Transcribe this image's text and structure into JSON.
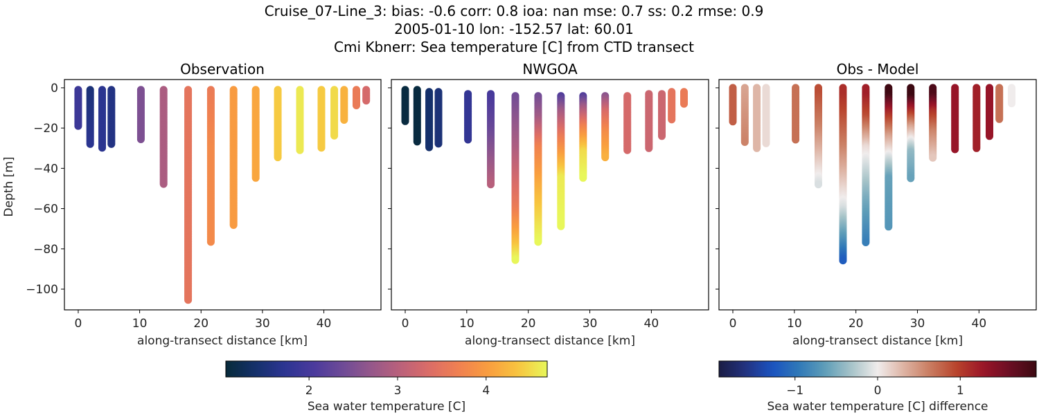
{
  "title": {
    "line1": "Cruise_07-Line_3: bias: -0.6  corr: 0.8  ioa: nan  mse: 0.7  ss: 0.2  rmse: 0.9",
    "line2": "2005-01-10 lon: -152.57 lat: 60.01",
    "line3": "Cmi Kbnerr: Sea temperature [C] from CTD transect"
  },
  "chart_data": [
    {
      "type": "scatter",
      "title": "Observation",
      "xlabel": "along-transect distance [km]",
      "ylabel": "Depth [m]",
      "xlim": [
        -2.25,
        49.3
      ],
      "ylim": [
        -110.3,
        4.1
      ],
      "xticks": [
        0,
        10,
        20,
        30,
        40
      ],
      "yticks": [
        0,
        -20,
        -40,
        -60,
        -80,
        -100
      ],
      "ytick_labels": [
        "0",
        "−20",
        "−40",
        "−60",
        "−80",
        "−100"
      ],
      "colormap": "thermal",
      "stations": [
        {
          "x": 0,
          "top": -1,
          "bottom": -19,
          "temp": [
            [
              -1,
              1.9
            ],
            [
              -19,
              1.9
            ]
          ]
        },
        {
          "x": 1.95,
          "top": -1,
          "bottom": -28,
          "temp": [
            [
              -1,
              1.5
            ],
            [
              -28,
              1.7
            ]
          ]
        },
        {
          "x": 3.9,
          "top": -1,
          "bottom": -30,
          "temp": [
            [
              -1,
              1.7
            ],
            [
              -30,
              1.7
            ]
          ]
        },
        {
          "x": 5.4,
          "top": -1,
          "bottom": -28,
          "temp": [
            [
              -1,
              1.6
            ],
            [
              -28,
              1.6
            ]
          ]
        },
        {
          "x": 10.2,
          "top": -1,
          "bottom": -26,
          "temp": [
            [
              -1,
              2.5
            ],
            [
              -26,
              2.5
            ]
          ]
        },
        {
          "x": 13.9,
          "top": -1,
          "bottom": -48,
          "temp": [
            [
              -1,
              2.9
            ],
            [
              -48,
              2.9
            ]
          ]
        },
        {
          "x": 17.9,
          "top": -1,
          "bottom": -105.5,
          "temp": [
            [
              -1,
              3.5
            ],
            [
              -105.5,
              3.5
            ]
          ]
        },
        {
          "x": 21.6,
          "top": -1,
          "bottom": -76.6,
          "temp": [
            [
              -1,
              3.6
            ],
            [
              -30,
              3.8
            ],
            [
              -76.6,
              3.8
            ]
          ]
        },
        {
          "x": 25.3,
          "top": -1,
          "bottom": -68.7,
          "temp": [
            [
              -1,
              4.0
            ],
            [
              -68.7,
              4.0
            ]
          ]
        },
        {
          "x": 28.9,
          "top": -1,
          "bottom": -45,
          "temp": [
            [
              -1,
              4.1
            ],
            [
              -45,
              4.1
            ]
          ]
        },
        {
          "x": 32.5,
          "top": -1,
          "bottom": -35,
          "temp": [
            [
              -1,
              4.4
            ],
            [
              -35,
              4.4
            ]
          ]
        },
        {
          "x": 36.1,
          "top": -1,
          "bottom": -31,
          "temp": [
            [
              -1,
              4.6
            ],
            [
              -31,
              4.6
            ]
          ]
        },
        {
          "x": 39.6,
          "top": -1,
          "bottom": -30,
          "temp": [
            [
              -1,
              4.4
            ],
            [
              -30,
              4.4
            ]
          ]
        },
        {
          "x": 41.7,
          "top": -1,
          "bottom": -24,
          "temp": [
            [
              -1,
              4.5
            ],
            [
              -24,
              4.5
            ]
          ]
        },
        {
          "x": 43.3,
          "top": -1,
          "bottom": -16,
          "temp": [
            [
              -1,
              4.2
            ],
            [
              -16,
              4.2
            ]
          ]
        },
        {
          "x": 45.3,
          "top": -1,
          "bottom": -9.3,
          "temp": [
            [
              -1,
              3.6
            ],
            [
              -9.3,
              3.6
            ]
          ]
        },
        {
          "x": 46.9,
          "top": -1,
          "bottom": -6.4,
          "temp": [
            [
              -1,
              3.3
            ],
            [
              -6.4,
              3.3
            ]
          ]
        }
      ]
    },
    {
      "type": "scatter",
      "title": "NWGOA",
      "xlabel": "along-transect distance [km]",
      "xlim": [
        -2.25,
        49.3
      ],
      "ylim": [
        -110.3,
        4.1
      ],
      "xticks": [
        0,
        10,
        20,
        30,
        40
      ],
      "colormap": "thermal",
      "stations": [
        {
          "x": 0,
          "top": -1,
          "bottom": -17,
          "temp": [
            [
              -1,
              1.1
            ],
            [
              -17,
              1.1
            ]
          ]
        },
        {
          "x": 1.95,
          "top": -1,
          "bottom": -27,
          "temp": [
            [
              -1,
              1.1
            ],
            [
              -27,
              1.1
            ]
          ]
        },
        {
          "x": 3.9,
          "top": -2,
          "bottom": -30,
          "temp": [
            [
              -2,
              1.4
            ],
            [
              -30,
              1.4
            ]
          ]
        },
        {
          "x": 5.4,
          "top": -2,
          "bottom": -28,
          "temp": [
            [
              -2,
              1.5
            ],
            [
              -28,
              1.5
            ]
          ]
        },
        {
          "x": 10.2,
          "top": -3,
          "bottom": -26,
          "temp": [
            [
              -3,
              1.8
            ],
            [
              -26,
              1.8
            ]
          ]
        },
        {
          "x": 13.9,
          "top": -3,
          "bottom": -48,
          "temp": [
            [
              -3,
              2.0
            ],
            [
              -20,
              2.3
            ],
            [
              -48,
              3.0
            ]
          ]
        },
        {
          "x": 17.9,
          "top": -4,
          "bottom": -86,
          "temp": [
            [
              -4,
              2.4
            ],
            [
              -30,
              2.9
            ],
            [
              -60,
              3.6
            ],
            [
              -75,
              4.2
            ],
            [
              -86,
              4.7
            ]
          ]
        },
        {
          "x": 21.6,
          "top": -4,
          "bottom": -77,
          "temp": [
            [
              -4,
              2.4
            ],
            [
              -15,
              2.8
            ],
            [
              -30,
              3.7
            ],
            [
              -55,
              4.3
            ],
            [
              -77,
              4.7
            ]
          ]
        },
        {
          "x": 25.3,
          "top": -4,
          "bottom": -69,
          "temp": [
            [
              -4,
              2.1
            ],
            [
              -12,
              2.8
            ],
            [
              -25,
              3.6
            ],
            [
              -45,
              4.6
            ],
            [
              -69,
              4.7
            ]
          ]
        },
        {
          "x": 28.9,
          "top": -4,
          "bottom": -45,
          "temp": [
            [
              -4,
              2.1
            ],
            [
              -10,
              2.8
            ],
            [
              -20,
              3.7
            ],
            [
              -32,
              4.5
            ],
            [
              -45,
              4.7
            ]
          ]
        },
        {
          "x": 32.5,
          "top": -4,
          "bottom": -35,
          "temp": [
            [
              -4,
              2.6
            ],
            [
              -12,
              3.3
            ],
            [
              -22,
              3.8
            ],
            [
              -35,
              4.2
            ]
          ]
        },
        {
          "x": 36.1,
          "top": -4,
          "bottom": -31,
          "temp": [
            [
              -4,
              3.3
            ],
            [
              -31,
              3.3
            ]
          ]
        },
        {
          "x": 39.6,
          "top": -3,
          "bottom": -30,
          "temp": [
            [
              -3,
              3.2
            ],
            [
              -30,
              3.2
            ]
          ]
        },
        {
          "x": 41.7,
          "top": -3,
          "bottom": -24,
          "temp": [
            [
              -3,
              3.2
            ],
            [
              -24,
              3.2
            ]
          ]
        },
        {
          "x": 43.3,
          "top": -2,
          "bottom": -16,
          "temp": [
            [
              -2,
              3.5
            ],
            [
              -16,
              3.5
            ]
          ]
        },
        {
          "x": 45.3,
          "top": -2,
          "bottom": -8,
          "temp": [
            [
              -2,
              3.6
            ],
            [
              -8,
              3.6
            ]
          ]
        }
      ]
    },
    {
      "type": "scatter",
      "title": "Obs - Model",
      "xlabel": "along-transect distance [km]",
      "xlim": [
        -2.25,
        49.3
      ],
      "ylim": [
        -110.3,
        4.1
      ],
      "xticks": [
        0,
        10,
        20,
        30,
        40
      ],
      "colormap": "balance",
      "derived_from": "Observation minus NWGOA"
    }
  ],
  "colorbars": [
    {
      "label": "Sea water temperature [C]",
      "colormap": "thermal",
      "range": [
        1.06,
        4.69
      ],
      "ticks": [
        2,
        3,
        4
      ],
      "tick_labels": [
        "2",
        "3",
        "4"
      ]
    },
    {
      "label": "Sea water temperature [C] difference",
      "colormap": "balance",
      "range": [
        -1.92,
        1.92
      ],
      "ticks": [
        -1,
        0,
        1
      ],
      "tick_labels": [
        "−1",
        "0",
        "1"
      ]
    }
  ],
  "colormaps": {
    "thermal": [
      "#072a3a",
      "#14306a",
      "#2c3592",
      "#4a3a9c",
      "#6e4b97",
      "#96588a",
      "#bb617a",
      "#dc6d66",
      "#f08150",
      "#f99e3f",
      "#f8c43f",
      "#e8f75a"
    ],
    "balance": [
      "#1a1c44",
      "#23327f",
      "#1a52c0",
      "#2f78b8",
      "#5e9db8",
      "#a6c3c8",
      "#f0ecec",
      "#ddb2a2",
      "#c97b5f",
      "#b8432c",
      "#9a1528",
      "#6a0f24",
      "#3c0912"
    ]
  }
}
